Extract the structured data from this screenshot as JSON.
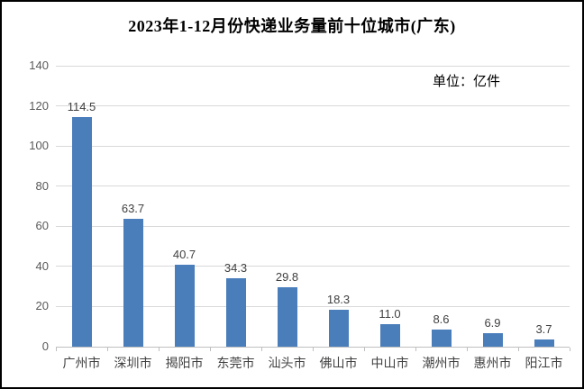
{
  "chart_data": {
    "type": "bar",
    "title": "2023年1-12月份快递业务量前十位城市(广东)",
    "unit_label": "单位：亿件",
    "categories": [
      "广州市",
      "深圳市",
      "揭阳市",
      "东莞市",
      "汕头市",
      "佛山市",
      "中山市",
      "潮州市",
      "惠州市",
      "阳江市"
    ],
    "values": [
      114.5,
      63.7,
      40.7,
      34.3,
      29.8,
      18.3,
      11.0,
      8.6,
      6.9,
      3.7
    ],
    "data_labels": [
      "114.5",
      "63.7",
      "40.7",
      "34.3",
      "29.8",
      "18.3",
      "11.0",
      "8.6",
      "6.9",
      "3.7"
    ],
    "xlabel": "",
    "ylabel": "",
    "ylim": [
      0,
      140
    ],
    "yticks": [
      0,
      20,
      40,
      60,
      80,
      100,
      120,
      140
    ],
    "grid": true,
    "legend": "none",
    "bar_color": "#4a7ebb",
    "gridline_color": "#d9d9d9",
    "axis_color": "#bfbfbf",
    "background_color": "#ffffff"
  }
}
